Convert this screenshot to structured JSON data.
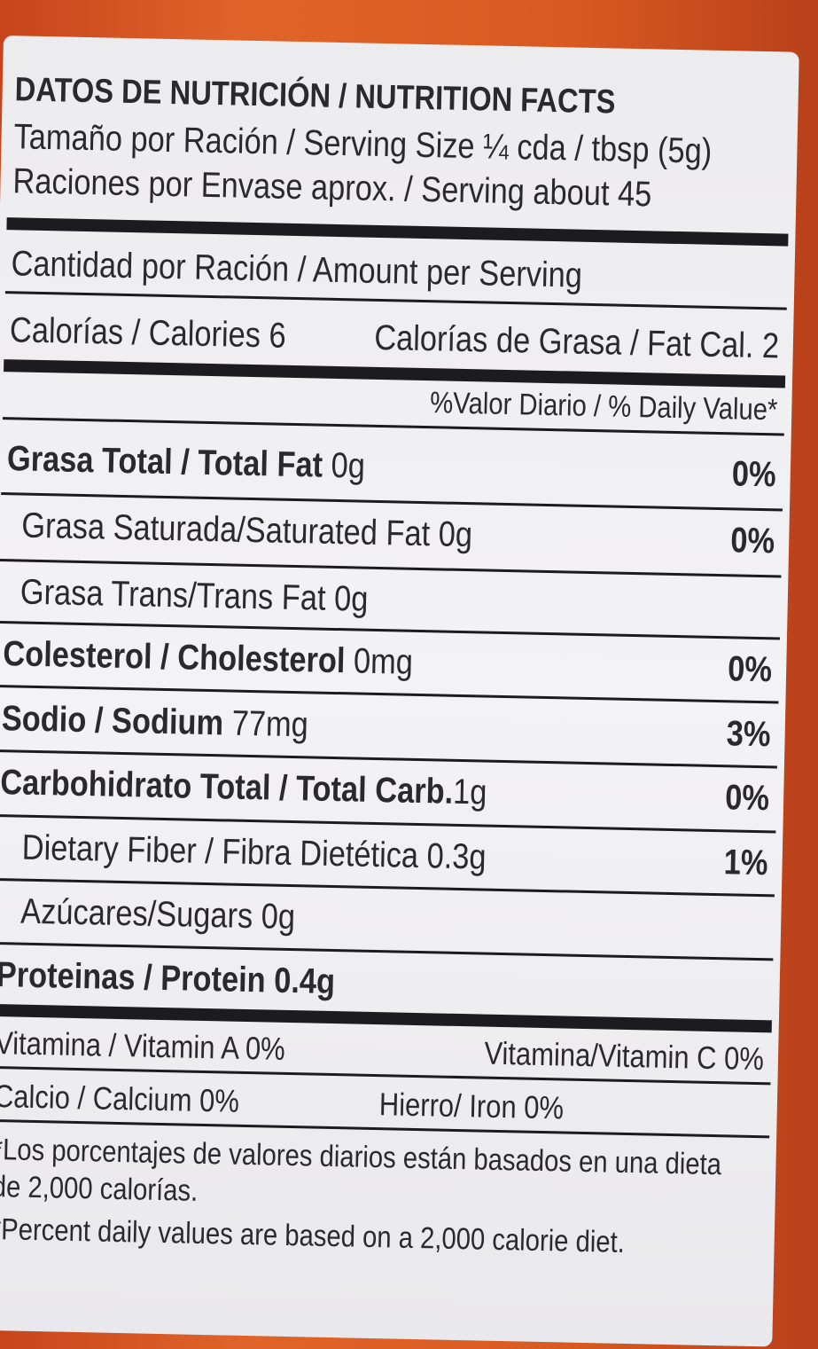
{
  "title": "DATOS DE NUTRICIÓN / NUTRITION FACTS",
  "serving_size": "Tamaño por Ración / Serving Size ¼ cda / tbsp (5g)",
  "servings": "Raciones por Envase aprox. / Serving about 45",
  "amount_per_serving": "Cantidad por Ración / Amount per Serving",
  "calories": "Calorías / Calories 6",
  "fat_calories": "Calorías de Grasa / Fat Cal. 2",
  "dv_header": "%Valor Diario / % Daily Value*",
  "nutrients": [
    {
      "label": "Grasa Total / Total Fat",
      "amount": "0g",
      "dv": "0%"
    },
    {
      "label": "Grasa Saturada/Saturated Fat",
      "amount": "0g",
      "dv": "0%"
    },
    {
      "label": "Grasa Trans/Trans Fat",
      "amount": "0g",
      "dv": ""
    },
    {
      "label": "Colesterol / Cholesterol",
      "amount": "0mg",
      "dv": "0%"
    },
    {
      "label": "Sodio / Sodium",
      "amount": "77mg",
      "dv": "3%"
    },
    {
      "label": "Carbohidrato Total / Total Carb.",
      "amount": "1g",
      "dv": "0%"
    },
    {
      "label": "Dietary Fiber / Fibra Dietética",
      "amount": "0.3g",
      "dv": "1%"
    },
    {
      "label": "Azúcares/Sugars",
      "amount": "0g",
      "dv": ""
    },
    {
      "label": "Proteinas / Protein",
      "amount": "0.4g",
      "dv": ""
    }
  ],
  "vitamins": {
    "vit_a": "Vitamina / Vitamin A 0%",
    "vit_c": "Vitamina/Vitamin C 0%",
    "calcium": "Calcio / Calcium 0%",
    "iron": "Hierro/ Iron 0%"
  },
  "footnote_es": "*Los porcentajes de valores diarios están basados en una dieta de 2,000 calorías.",
  "footnote_en": "*Percent daily values are based on a 2,000 calorie diet."
}
